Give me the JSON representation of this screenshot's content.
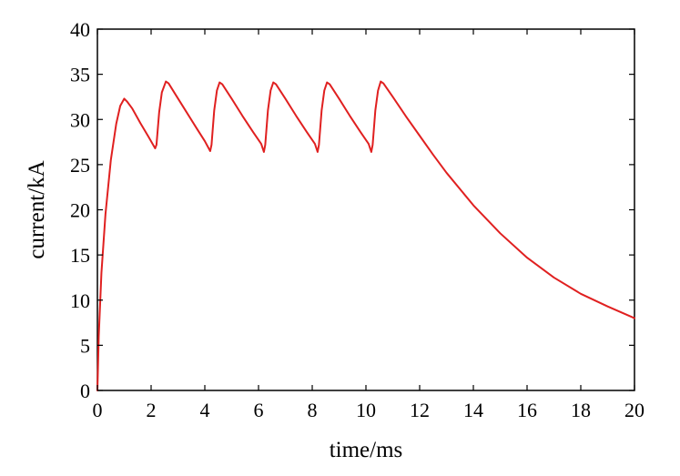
{
  "chart_data": {
    "type": "line",
    "title": "",
    "xlabel": "time/ms",
    "ylabel": "current/kA",
    "xlim": [
      0,
      20
    ],
    "ylim": [
      0,
      40
    ],
    "xticks": [
      0,
      2,
      4,
      6,
      8,
      10,
      12,
      14,
      16,
      18,
      20
    ],
    "yticks": [
      0,
      5,
      10,
      15,
      20,
      25,
      30,
      35,
      40
    ],
    "grid": false,
    "legend": "none",
    "series": [
      {
        "color": "#e02020",
        "x": [
          0,
          0.05,
          0.15,
          0.3,
          0.5,
          0.7,
          0.85,
          1.0,
          1.1,
          1.3,
          1.6,
          1.9,
          2.15,
          2.2,
          2.3,
          2.4,
          2.55,
          2.65,
          2.9,
          3.3,
          3.7,
          4.0,
          4.2,
          4.25,
          4.35,
          4.45,
          4.55,
          4.65,
          5.0,
          5.4,
          5.8,
          6.1,
          6.2,
          6.25,
          6.35,
          6.45,
          6.55,
          6.65,
          7.0,
          7.4,
          7.8,
          8.1,
          8.2,
          8.25,
          8.35,
          8.45,
          8.55,
          8.65,
          9.0,
          9.4,
          9.8,
          10.1,
          10.2,
          10.25,
          10.35,
          10.45,
          10.55,
          10.65,
          11.0,
          11.5,
          12.0,
          12.5,
          13.0,
          14.0,
          15.0,
          16.0,
          17.0,
          18.0,
          19.0,
          20.0
        ],
        "y": [
          0,
          6,
          13,
          19.5,
          25.5,
          29.5,
          31.5,
          32.3,
          32.0,
          31.2,
          29.6,
          28.1,
          26.8,
          27.2,
          30.8,
          33.0,
          34.2,
          34.0,
          32.8,
          30.9,
          29.0,
          27.6,
          26.5,
          27.2,
          31.0,
          33.2,
          34.1,
          33.9,
          32.3,
          30.4,
          28.6,
          27.3,
          26.4,
          27.2,
          31.0,
          33.2,
          34.1,
          33.9,
          32.3,
          30.4,
          28.6,
          27.3,
          26.4,
          27.2,
          31.0,
          33.2,
          34.1,
          33.9,
          32.3,
          30.4,
          28.6,
          27.3,
          26.4,
          27.2,
          31.0,
          33.2,
          34.2,
          34.0,
          32.5,
          30.3,
          28.2,
          26.1,
          24.1,
          20.5,
          17.4,
          14.7,
          12.5,
          10.7,
          9.3,
          8.0
        ]
      }
    ]
  }
}
